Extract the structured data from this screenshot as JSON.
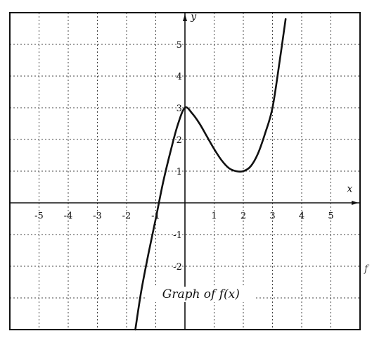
{
  "chart_data": {
    "type": "line",
    "title": "",
    "xlabel": "x",
    "ylabel": "y",
    "xlim": [
      -6,
      6
    ],
    "ylim": [
      -4,
      6
    ],
    "x_ticks": [
      -5,
      -4,
      -3,
      -2,
      -1,
      1,
      2,
      3,
      4,
      5
    ],
    "y_ticks": [
      -2,
      -1,
      1,
      2,
      3,
      4,
      5
    ],
    "x_tick_labels": [
      "-5",
      "-4",
      "-3",
      "-2",
      "-1",
      "1",
      "2",
      "3",
      "4",
      "5"
    ],
    "y_tick_labels": [
      "-2",
      "-1",
      "1",
      "2",
      "3",
      "4",
      "5"
    ],
    "grid": true,
    "series": [
      {
        "x": [
          -1.7,
          -1.5,
          -1.25,
          -1,
          -0.75,
          -0.5,
          -0.25,
          0,
          0.25,
          0.5,
          0.75,
          1,
          1.25,
          1.5,
          1.75,
          2,
          2.25,
          2.5,
          2.75,
          3,
          3.25,
          3.45
        ],
        "y": [
          -4,
          -2.8,
          -1.6,
          -0.5,
          0.64,
          1.6,
          2.45,
          3,
          2.82,
          2.5,
          2.1,
          1.7,
          1.35,
          1.1,
          1.0,
          1.0,
          1.15,
          1.55,
          2.2,
          3,
          4.5,
          5.8
        ]
      }
    ],
    "annotations": [
      {
        "text": "Graph of f(x)",
        "x": 0.55,
        "y": -3
      }
    ]
  },
  "margin_text": "f"
}
